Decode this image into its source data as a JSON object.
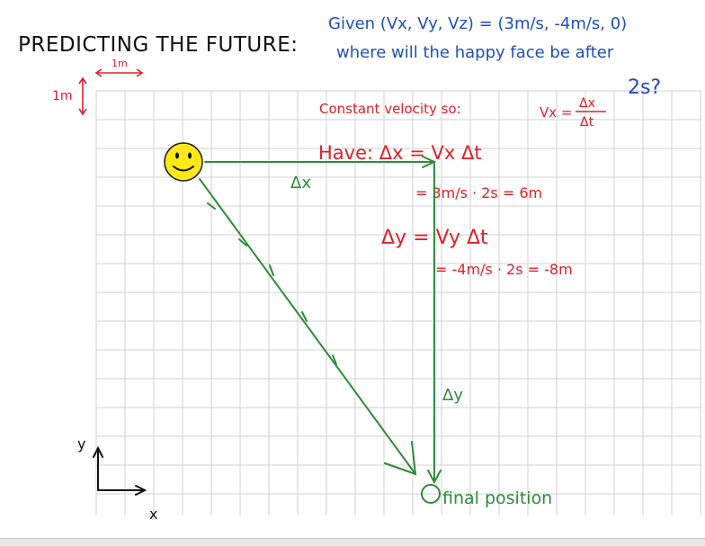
{
  "title": "PREDICTING THE FUTURE:",
  "question": {
    "line1": "Given (Vx, Vy, Vz) = (3m/s, -4m/s, 0)",
    "line2": "where will the happy face be after",
    "line3": "2s?"
  },
  "scale": {
    "horizontal": "1m",
    "vertical": "1m"
  },
  "work": {
    "constant_velocity": "Constant velocity so:",
    "vx_formula_left": "Vx =",
    "vx_formula_num": "Δx",
    "vx_formula_den": "Δt",
    "have_dx": "Have: Δx = Vx Δt",
    "dx_calc": "= 3m/s · 2s = 6m",
    "dy_eq": "Δy = Vy Δt",
    "dy_calc": "= -4m/s · 2s = -8m"
  },
  "labels": {
    "dx": "Δx",
    "dy": "Δy",
    "final": "final position"
  },
  "axes": {
    "x": "x",
    "y": "y"
  },
  "colors": {
    "title": "#111111",
    "question": "#1f4fb8",
    "work": "#e0202a",
    "vector": "#2e8b3a",
    "grid": "#d2d2d2",
    "face": "#ffe817"
  }
}
